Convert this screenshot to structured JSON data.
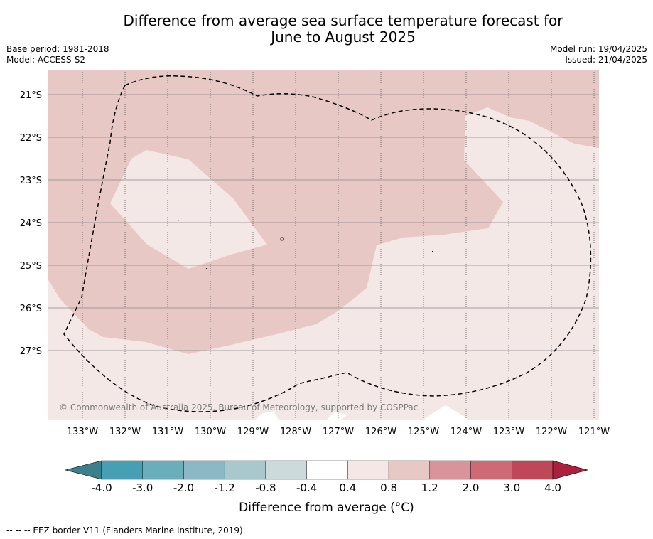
{
  "title": {
    "line1": "Difference from average sea surface temperature forecast for",
    "line2": "June to August 2025"
  },
  "meta_left": {
    "base_period": "Base period: 1981-2018",
    "model": "Model: ACCESS-S2"
  },
  "meta_right": {
    "model_run": "Model run: 19/04/2025",
    "issued": "Issued: 21/04/2025"
  },
  "map": {
    "copyright": "© Commonwealth of Australia 2025, Bureau of Meteorology, supported by COSPPac",
    "lat_labels": [
      "21°S",
      "22°S",
      "23°S",
      "24°S",
      "25°S",
      "26°S",
      "27°S"
    ],
    "lon_labels": [
      "133°W",
      "132°W",
      "131°W",
      "130°W",
      "129°W",
      "128°W",
      "127°W",
      "126°W",
      "125°W",
      "124°W",
      "123°W",
      "122°W",
      "121°W"
    ],
    "fill_colors": {
      "anomaly_0.8_1.2": "#e8c8c4",
      "anomaly_0.4_0.8": "#f4e8e6",
      "anomaly_-0.4_0.4": "#ffffff"
    },
    "eez_border": "dashed black line"
  },
  "colorbar": {
    "ticks": [
      "-4.0",
      "-3.0",
      "-2.0",
      "-1.2",
      "-0.8",
      "-0.4",
      "0.4",
      "0.8",
      "1.2",
      "2.0",
      "3.0",
      "4.0"
    ],
    "colors": [
      "#3c7f8d",
      "#469fb2",
      "#6aaebc",
      "#8cb8c5",
      "#a8c8cd",
      "#cddadc",
      "#ffffff",
      "#f5e7e6",
      "#e8c8c4",
      "#d8949a",
      "#cd6a74",
      "#c04758",
      "#ac1f3d"
    ],
    "title": "Difference from average (°C)"
  },
  "footnote": "--  --  -- EEZ border V11 (Flanders Marine Institute, 2019)."
}
